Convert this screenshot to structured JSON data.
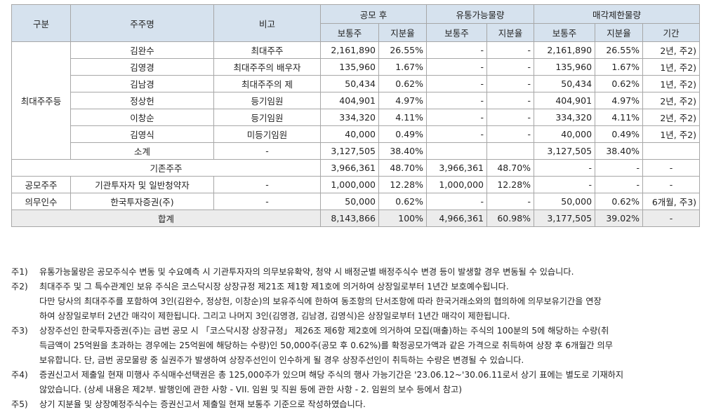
{
  "headers": {
    "group": "구분",
    "holder": "주주명",
    "remark": "비고",
    "after_offering": "공모 후",
    "tradable": "유통가능물량",
    "restricted": "매각제한물량",
    "common_shares": "보통주",
    "ratio": "지분율",
    "period": "기간"
  },
  "groups": {
    "major": "최대주주등",
    "public": "공모주주",
    "underwriter": "의무인수"
  },
  "major_rows": [
    {
      "name": "김완수",
      "remark": "최대주주",
      "shares": "2,161,890",
      "ratio": "26.55%",
      "t_shares": "-",
      "t_ratio": "-",
      "r_shares": "2,161,890",
      "r_ratio": "26.55%",
      "period": "2년, 주2)"
    },
    {
      "name": "김영경",
      "remark": "최대주주의 배우자",
      "shares": "135,960",
      "ratio": "1.67%",
      "t_shares": "-",
      "t_ratio": "-",
      "r_shares": "135,960",
      "r_ratio": "1.67%",
      "period": "1년, 주2)"
    },
    {
      "name": "김남경",
      "remark": "최대주주의 제",
      "shares": "50,434",
      "ratio": "0.62%",
      "t_shares": "-",
      "t_ratio": "-",
      "r_shares": "50,434",
      "r_ratio": "0.62%",
      "period": "1년, 주2)"
    },
    {
      "name": "정상헌",
      "remark": "등기임원",
      "shares": "404,901",
      "ratio": "4.97%",
      "t_shares": "-",
      "t_ratio": "-",
      "r_shares": "404,901",
      "r_ratio": "4.97%",
      "period": "2년, 주2)"
    },
    {
      "name": "이창순",
      "remark": "등기임원",
      "shares": "334,320",
      "ratio": "4.11%",
      "t_shares": "-",
      "t_ratio": "-",
      "r_shares": "334,320",
      "r_ratio": "4.11%",
      "period": "2년, 주2)"
    },
    {
      "name": "김영식",
      "remark": "미등기임원",
      "shares": "40,000",
      "ratio": "0.49%",
      "t_shares": "-",
      "t_ratio": "-",
      "r_shares": "40,000",
      "r_ratio": "0.49%",
      "period": "1년, 주2)"
    }
  ],
  "subtotal": {
    "name": "소계",
    "remark": "-",
    "shares": "3,127,505",
    "ratio": "38.40%",
    "r_shares": "3,127,505",
    "r_ratio": "38.40%"
  },
  "existing": {
    "name": "기존주주",
    "shares": "3,966,361",
    "ratio": "48.70%",
    "t_shares": "3,966,361",
    "t_ratio": "48.70%",
    "r_shares": "-",
    "r_ratio": "-",
    "period": "-"
  },
  "public_row": {
    "name": "기관투자자 및 일반청약자",
    "remark": "-",
    "shares": "1,000,000",
    "ratio": "12.28%",
    "t_shares": "1,000,000",
    "t_ratio": "12.28%",
    "r_shares": "-",
    "r_ratio": "-",
    "period": "-"
  },
  "underwriter_row": {
    "name": "한국투자증권(주)",
    "remark": "-",
    "shares": "50,000",
    "ratio": "0.62%",
    "t_shares": "-",
    "t_ratio": "-",
    "r_shares": "50,000",
    "r_ratio": "0.62%",
    "period": "6개월, 주3)"
  },
  "total": {
    "name": "합계",
    "shares": "8,143,866",
    "ratio": "100%",
    "t_shares": "4,966,361",
    "t_ratio": "60.98%",
    "r_shares": "3,177,505",
    "r_ratio": "39.02%",
    "period": "-"
  },
  "notes": [
    {
      "label": "주1)",
      "lines": [
        "유통가능물량은 공모주식수 변동 및 수요예측 시 기관투자자의 의무보유확약, 청약 시 배정군별 배정주식수 변경 등이 발생할 경우 변동될 수 있습니다."
      ]
    },
    {
      "label": "주2)",
      "lines": [
        "최대주주 및 그 특수관계인 보유 주식은 코스닥시장 상장규정 제21조 제1항 제1호에 의거하여 상장일로부터 1년간 보호예수됩니다.",
        "다만 당사의 최대주주를 포함하여 3인(김완수, 정상헌, 이창순)의 보유주식에 한하여 동조항의 단서조항에 따라 한국거래소와의 협의하에 의무보유기간을 연장",
        "하여 상장일로부터 2년간 매각이 제한됩니다. 그리고 나머지 3인(김영경, 김남경, 김영식)은 상장일로부터 1년간 매각이 제한됩니다."
      ]
    },
    {
      "label": "주3)",
      "lines": [
        "상장주선인 한국투자증권(주)는 금번 공모 시 「코스닥시장 상장규정」 제26조 제6항 제2호에 의거하여 모집(매출)하는 주식의 100분의 5에 해당하는 수량(취",
        "득금액이 25억원을 초과하는 경우에는 25억원에 해당하는 수량)인 50,000주(공모 후 0.62%)를 확정공모가액과 같은 가격으로 취득하여 상장 후 6개월간 의무",
        "보유합니다. 단, 금번 공모물량 중 실권주가 발생하여 상장주선인이 인수하게 될 경우 상장주선인이 취득하는 수량은 변경될 수 있습니다."
      ]
    },
    {
      "label": "주4)",
      "lines": [
        "증권신고서 제출일 현재 미행사 주식매수선택권은 총 125,000주가 있으며 해당 주식의 행사 가능기간은 '23.06.12~'30.06.11로서 상기 표에는 별도로 기재하지",
        "않았습니다. (상세 내용은 제2부. 발행인에 관한 사항 - VII. 임원 및 직원 등에 관한 사항 - 2. 임원의 보수 등에서 참고)"
      ]
    },
    {
      "label": "주5)",
      "lines": [
        "상기 지분율 및 상장예정주식수는 증권신고서 제출일 현재 보통주 기준으로 작성하였습니다."
      ]
    }
  ]
}
